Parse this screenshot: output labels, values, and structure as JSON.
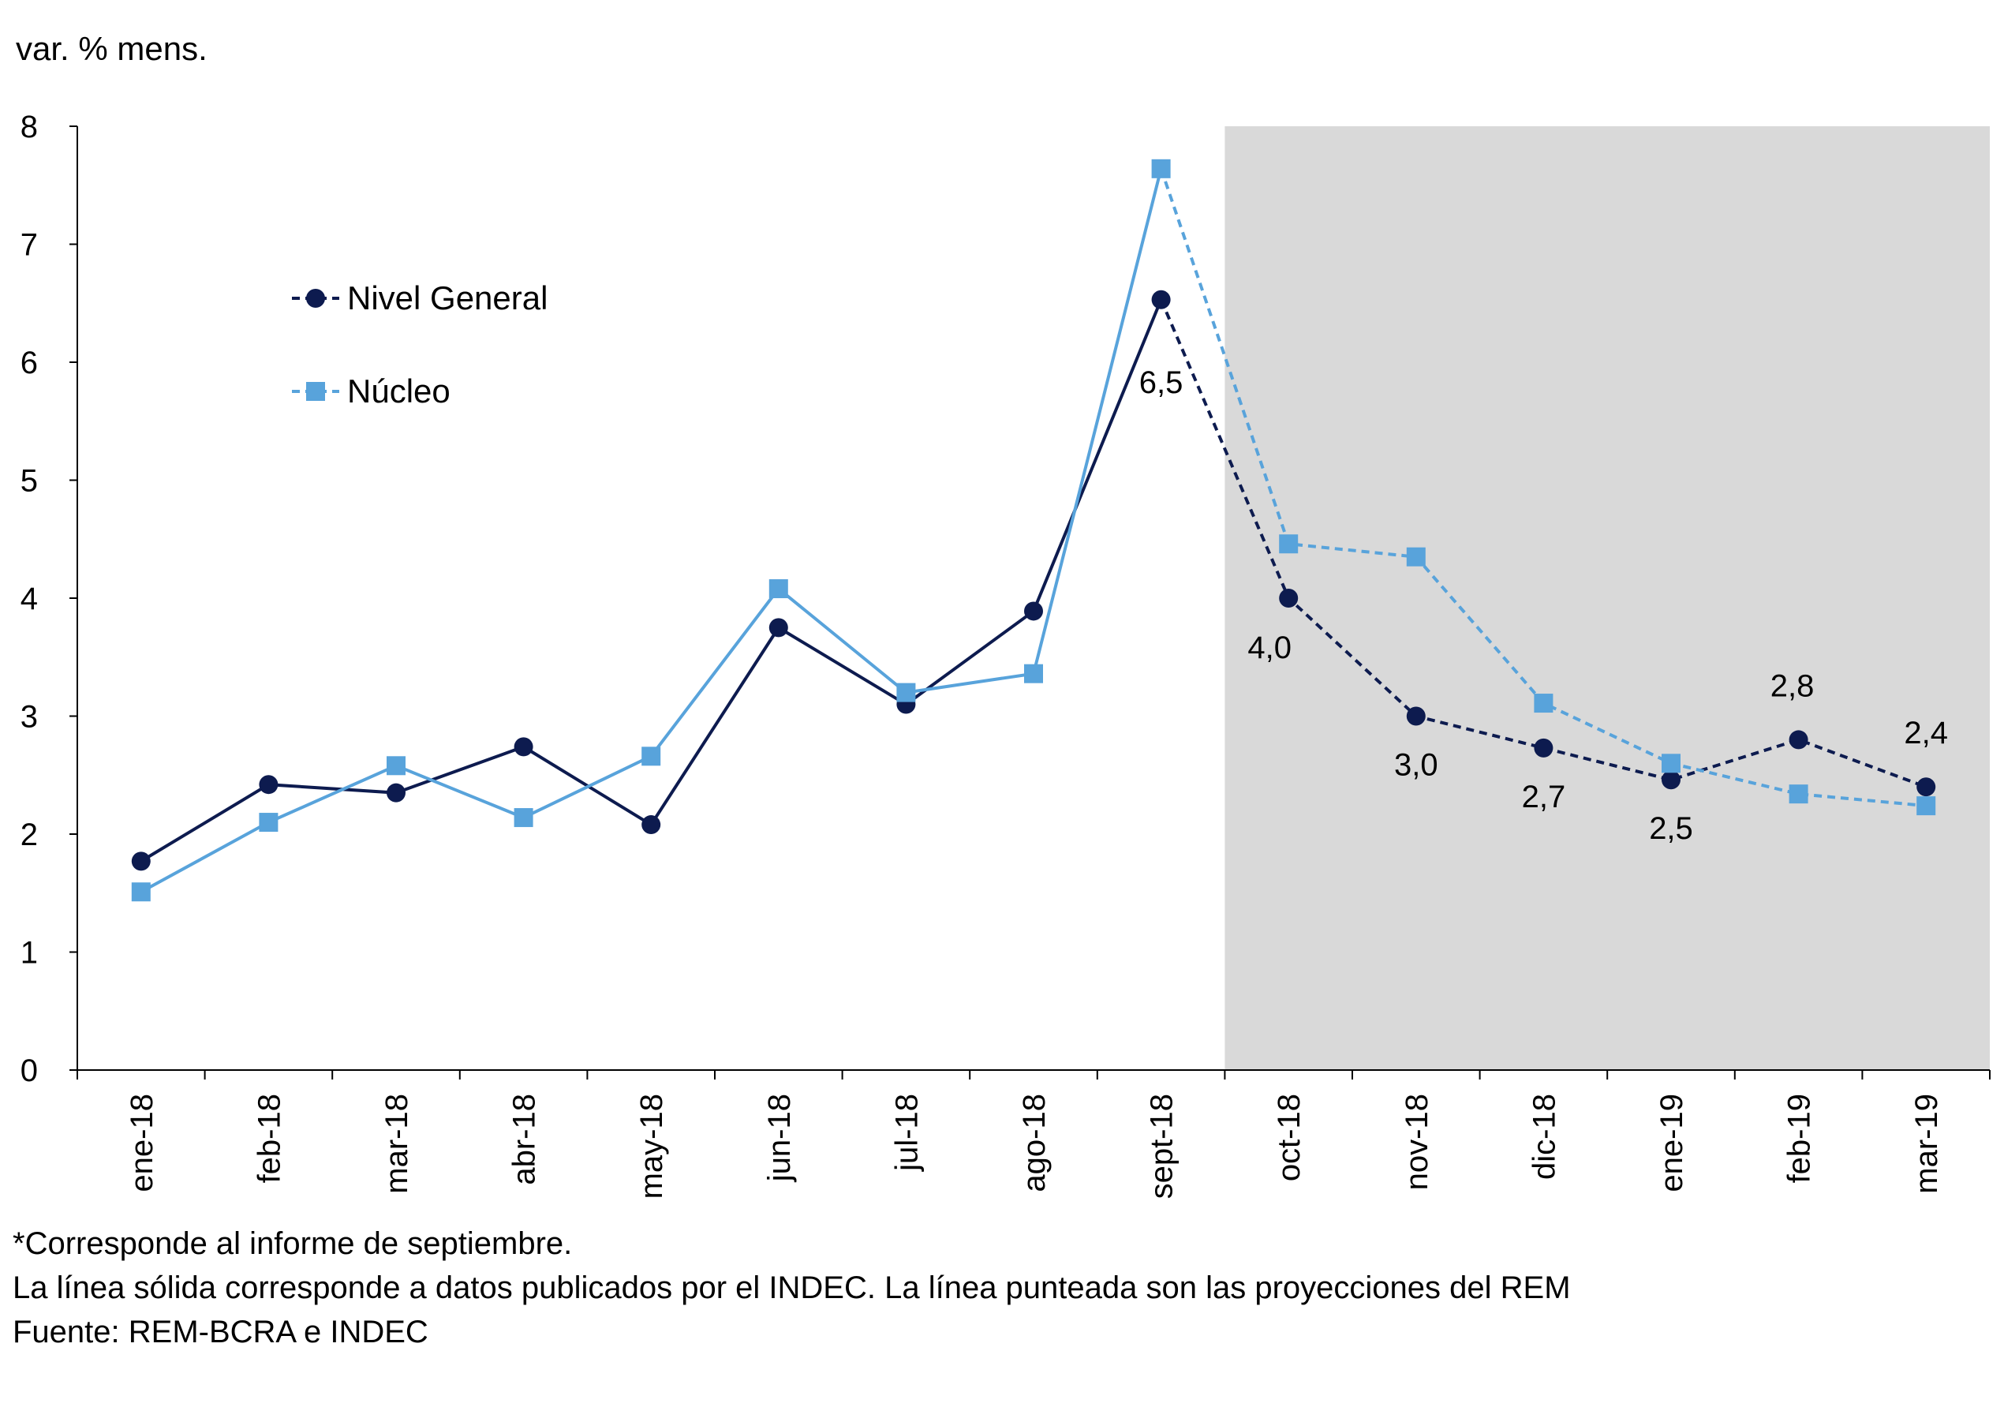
{
  "chart_data": {
    "type": "line",
    "y_axis_title": "var. % mens.",
    "categories": [
      "ene-18",
      "feb-18",
      "mar-18",
      "abr-18",
      "may-18",
      "jun-18",
      "jul-18",
      "ago-18",
      "sept-18",
      "oct-18",
      "nov-18",
      "dic-18",
      "ene-19",
      "feb-19",
      "mar-19"
    ],
    "ylim": [
      0,
      8
    ],
    "yticks": [
      0,
      1,
      2,
      3,
      4,
      5,
      6,
      7,
      8
    ],
    "projection_start_category": "oct-18",
    "series": [
      {
        "name": "Nivel General",
        "color": "#0d1b4f",
        "marker": "circle",
        "values": [
          1.77,
          2.42,
          2.35,
          2.74,
          2.08,
          3.75,
          3.1,
          3.89,
          6.53,
          4.0,
          3.0,
          2.73,
          2.46,
          2.8,
          2.4
        ],
        "labels": {
          "8": "6,5",
          "9": "4,0",
          "10": "3,0",
          "11": "2,7",
          "12": "2,5",
          "13": "2,8",
          "14": "2,4"
        }
      },
      {
        "name": "Núcleo",
        "color": "#58a3db",
        "marker": "square",
        "values": [
          1.51,
          2.1,
          2.58,
          2.14,
          2.66,
          4.08,
          3.2,
          3.36,
          7.64,
          4.46,
          4.35,
          3.11,
          2.6,
          2.34,
          2.24
        ]
      }
    ],
    "legend": {
      "placement": "top-left",
      "items": [
        "Nivel General",
        "Núcleo"
      ]
    }
  },
  "notes": [
    "*Corresponde al informe de septiembre.",
    "La línea sólida corresponde a datos publicados por el INDEC. La línea punteada son las proyecciones del REM",
    "Fuente: REM-BCRA e INDEC"
  ]
}
